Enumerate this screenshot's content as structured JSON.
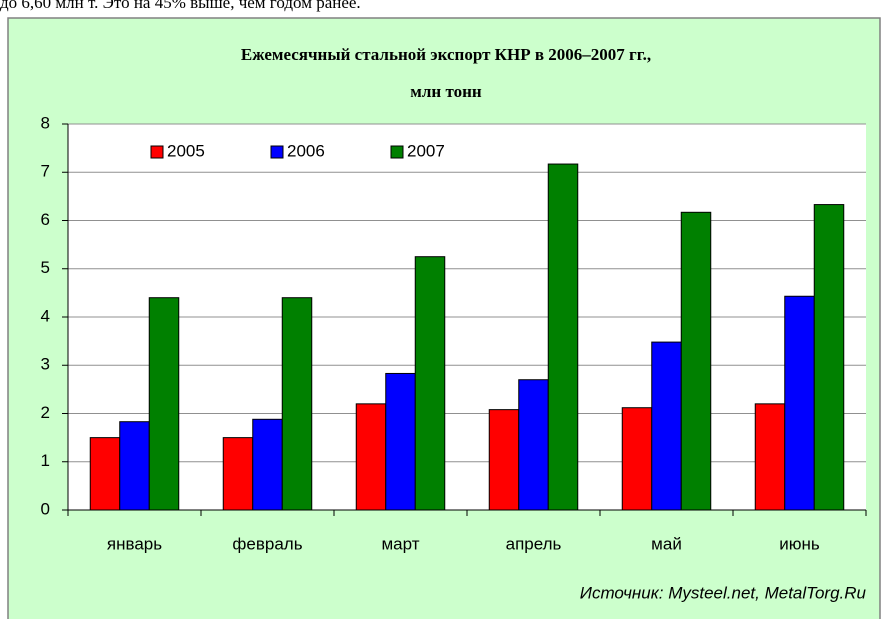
{
  "page_text": "до 6,60 млн т. Это на 45% выше, чем годом ранее.",
  "chart_data": {
    "type": "bar",
    "title": "Ежемесячный стальной экспорт КНР в  2006–2007 гг.,",
    "subtitle": "млн тонн",
    "categories": [
      "январь",
      "февраль",
      "март",
      "апрель",
      "май",
      "июнь"
    ],
    "series": [
      {
        "name": "2005",
        "color": "#ff0000",
        "values": [
          1.5,
          1.5,
          2.2,
          2.08,
          2.12,
          2.2
        ]
      },
      {
        "name": "2006",
        "color": "#0000ff",
        "values": [
          1.83,
          1.88,
          2.83,
          2.7,
          3.48,
          4.43
        ]
      },
      {
        "name": "2007",
        "color": "#008000",
        "values": [
          4.4,
          4.4,
          5.25,
          7.17,
          6.17,
          6.33
        ]
      }
    ],
    "ylim": [
      0,
      8
    ],
    "yticks": [
      0,
      1,
      2,
      3,
      4,
      5,
      6,
      7,
      8
    ],
    "grid": true,
    "legend": "top-left",
    "annotation": "Источник: Mysteel.net, MetalTorg.Ru"
  }
}
